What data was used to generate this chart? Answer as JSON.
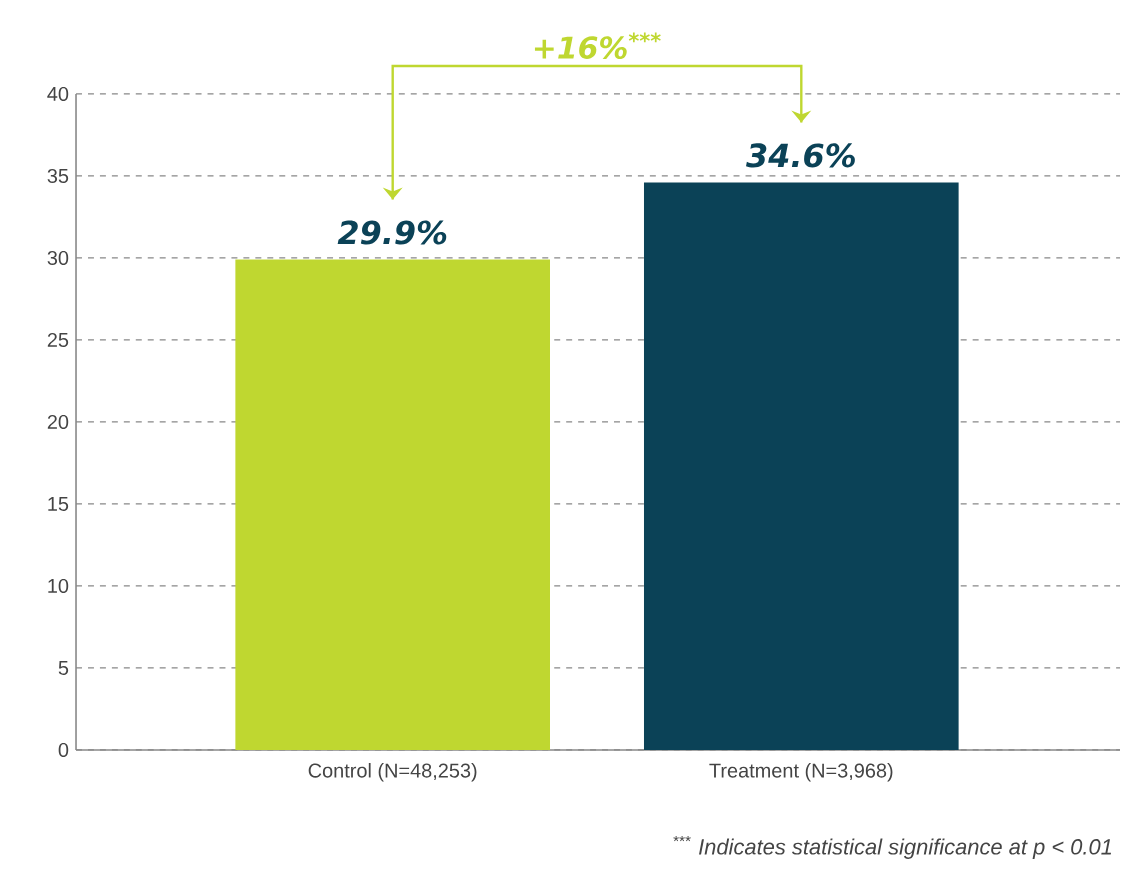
{
  "chart_data": {
    "type": "bar",
    "categories": [
      "Control (N=48,253)",
      "Treatment (N=3,968)"
    ],
    "values": [
      29.9,
      34.6
    ],
    "colors": [
      "#bfd730",
      "#0b4257"
    ],
    "value_labels": [
      "29.9%",
      "34.6%"
    ],
    "ylim": [
      0,
      40
    ],
    "yticks": [
      0,
      5,
      10,
      15,
      20,
      25,
      30,
      35,
      40
    ],
    "grid": "y",
    "annotations": [
      "+16%$^{***}$",
      "$^{***}$ *Indicates statistical significance at p < 0.01*"
    ]
  }
}
